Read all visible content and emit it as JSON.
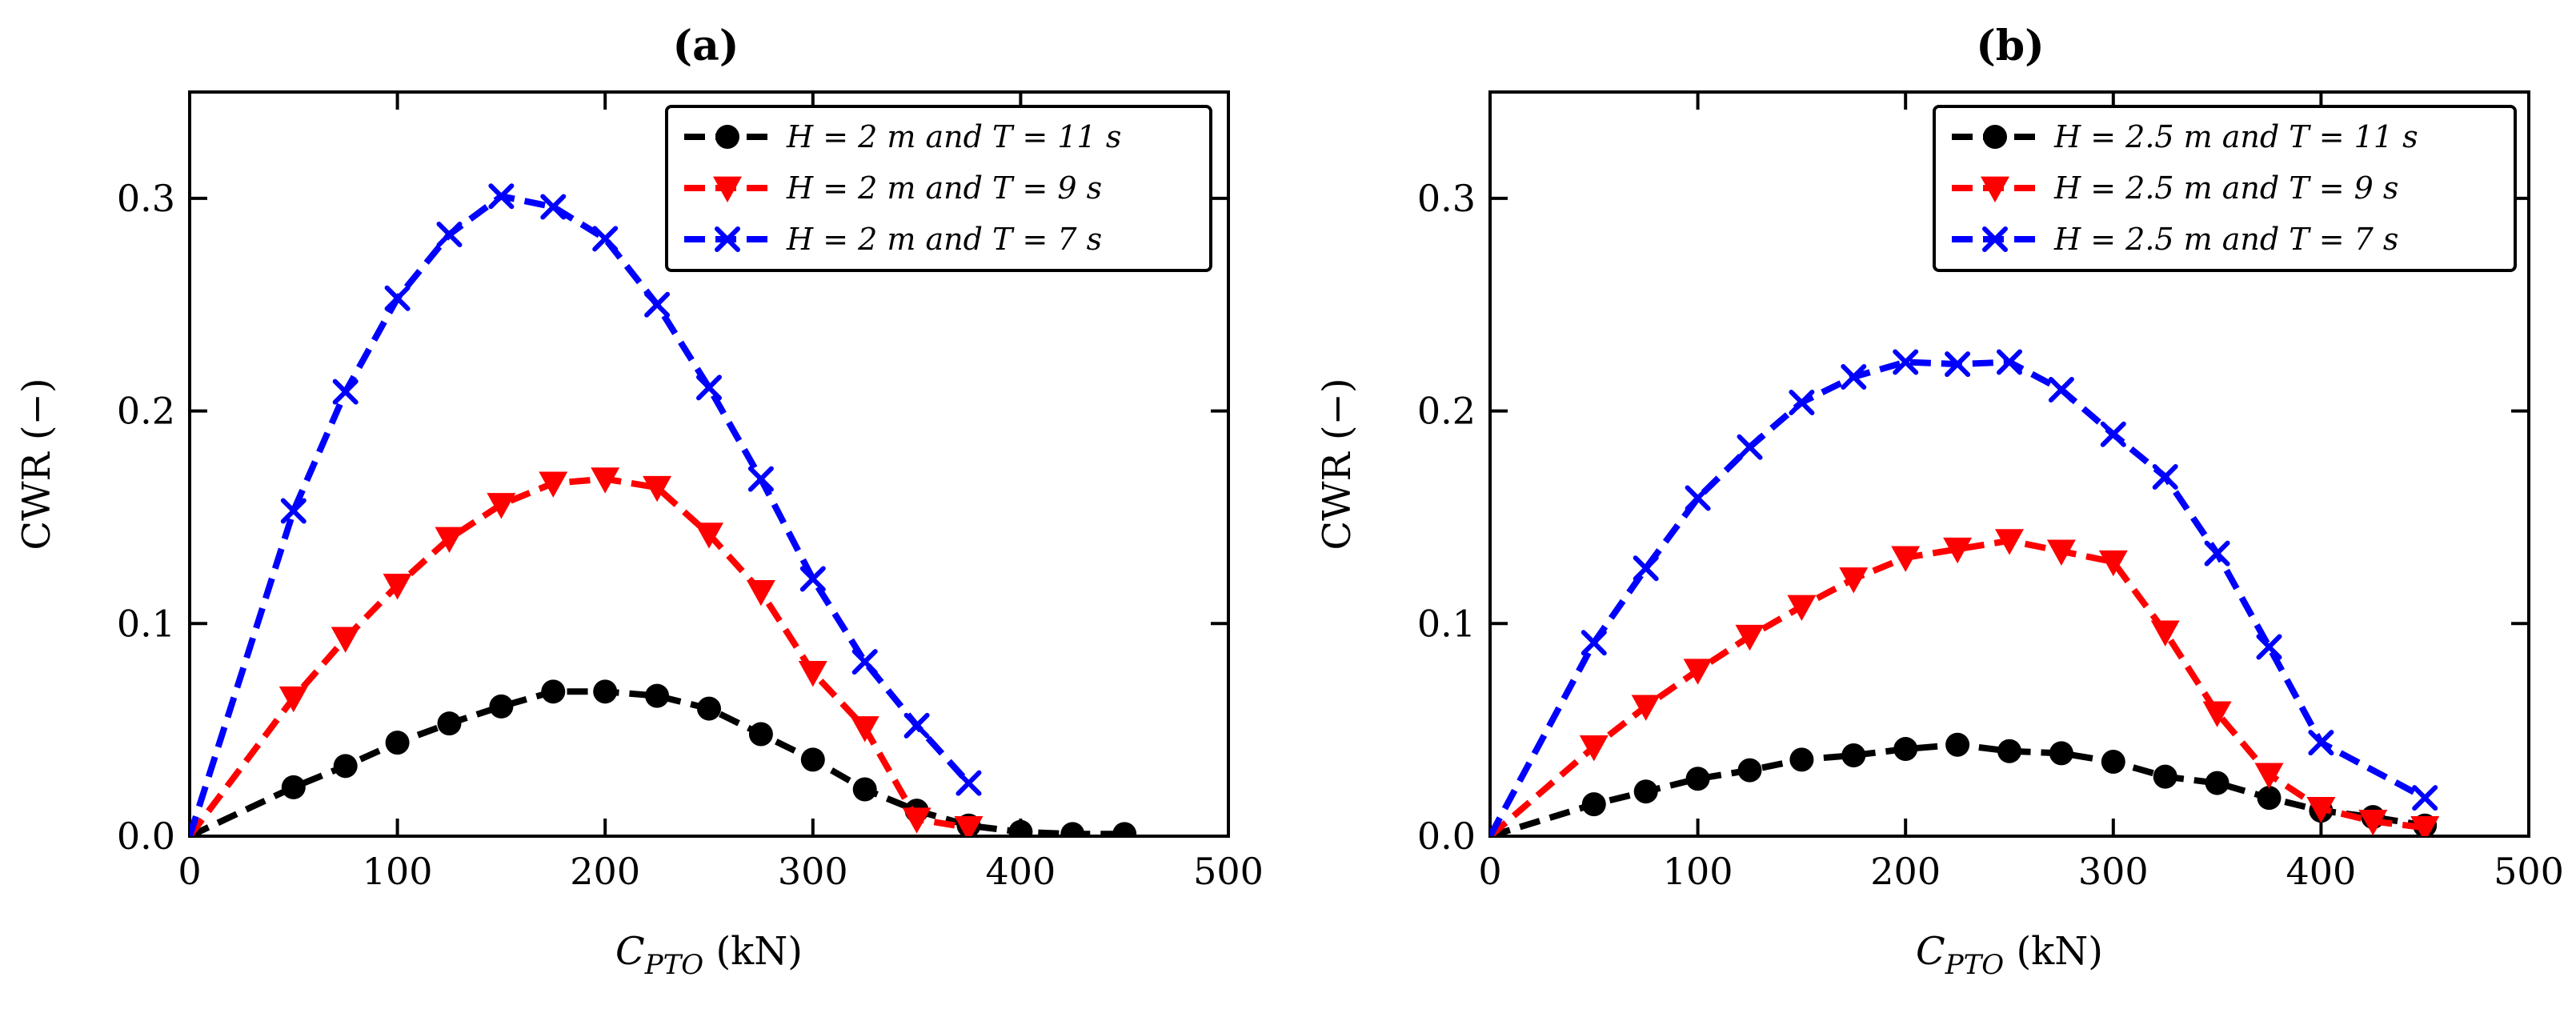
{
  "chart_data": [
    {
      "type": "line",
      "title": "(a)",
      "xlabel": "C_PTO (kN)",
      "xlabel_main": "C",
      "xlabel_sub": "PTO",
      "xlabel_unit": " (kN)",
      "ylabel": "CWR (−)",
      "xlim": [
        0,
        500
      ],
      "ylim": [
        0,
        0.35
      ],
      "xticks": [
        0,
        100,
        200,
        300,
        400,
        500
      ],
      "xtick_labels": [
        "0",
        "100",
        "200",
        "300",
        "400",
        "500"
      ],
      "yticks": [
        0,
        0.1,
        0.2,
        0.3
      ],
      "ytick_labels": [
        "0.0",
        "0.1",
        "0.2",
        "0.3"
      ],
      "grid": false,
      "legend_position": "top-right",
      "series": [
        {
          "name": "H = 2 m and T = 11 s",
          "color": "#000000",
          "marker": "circle",
          "x": [
            0,
            50,
            75,
            100,
            125,
            150,
            175,
            200,
            225,
            250,
            275,
            300,
            325,
            350,
            375,
            400,
            425,
            450
          ],
          "y": [
            0,
            0.023,
            0.033,
            0.044,
            0.053,
            0.061,
            0.068,
            0.068,
            0.066,
            0.06,
            0.048,
            0.036,
            0.022,
            0.012,
            0.005,
            0.002,
            0.001,
            0.001
          ]
        },
        {
          "name": "H = 2 m and T = 9 s",
          "color": "#ff0000",
          "marker": "triangle-down",
          "x": [
            0,
            50,
            75,
            100,
            125,
            150,
            175,
            200,
            225,
            250,
            275,
            300,
            325,
            350,
            375
          ],
          "y": [
            0,
            0.065,
            0.093,
            0.118,
            0.14,
            0.156,
            0.166,
            0.168,
            0.164,
            0.142,
            0.115,
            0.077,
            0.051,
            0.008,
            0.004
          ]
        },
        {
          "name": "H = 2 m and T = 7 s",
          "color": "#0000ff",
          "marker": "x",
          "x": [
            0,
            50,
            75,
            100,
            125,
            150,
            175,
            200,
            225,
            250,
            275,
            300,
            325,
            350,
            375
          ],
          "y": [
            0,
            0.153,
            0.209,
            0.253,
            0.283,
            0.301,
            0.296,
            0.281,
            0.25,
            0.211,
            0.168,
            0.121,
            0.082,
            0.052,
            0.025
          ]
        }
      ]
    },
    {
      "type": "line",
      "title": "(b)",
      "xlabel": "C_PTO (kN)",
      "xlabel_main": "C",
      "xlabel_sub": "PTO",
      "xlabel_unit": " (kN)",
      "ylabel": "CWR (−)",
      "xlim": [
        0,
        500
      ],
      "ylim": [
        0,
        0.35
      ],
      "xticks": [
        0,
        100,
        200,
        300,
        400,
        500
      ],
      "xtick_labels": [
        "0",
        "100",
        "200",
        "300",
        "400",
        "500"
      ],
      "yticks": [
        0,
        0.1,
        0.2,
        0.3
      ],
      "ytick_labels": [
        "0.0",
        "0.1",
        "0.2",
        "0.3"
      ],
      "grid": false,
      "legend_position": "top-right",
      "series": [
        {
          "name": "H = 2.5 m and T = 11 s",
          "color": "#000000",
          "marker": "circle",
          "x": [
            0,
            50,
            75,
            100,
            125,
            150,
            175,
            200,
            225,
            250,
            275,
            300,
            325,
            350,
            375,
            400,
            425,
            450
          ],
          "y": [
            0,
            0.015,
            0.021,
            0.027,
            0.031,
            0.036,
            0.038,
            0.041,
            0.043,
            0.04,
            0.039,
            0.035,
            0.028,
            0.025,
            0.018,
            0.012,
            0.009,
            0.005
          ]
        },
        {
          "name": "H = 2.5 m and T = 9 s",
          "color": "#ff0000",
          "marker": "triangle-down",
          "x": [
            0,
            50,
            75,
            100,
            125,
            150,
            175,
            200,
            225,
            250,
            275,
            300,
            325,
            350,
            375,
            400,
            425,
            450
          ],
          "y": [
            0,
            0.042,
            0.061,
            0.078,
            0.094,
            0.108,
            0.121,
            0.131,
            0.135,
            0.139,
            0.134,
            0.129,
            0.096,
            0.058,
            0.029,
            0.013,
            0.007,
            0.004
          ]
        },
        {
          "name": "H = 2.5 m and T = 7 s",
          "color": "#0000ff",
          "marker": "x",
          "x": [
            0,
            50,
            75,
            100,
            125,
            150,
            175,
            200,
            225,
            250,
            275,
            300,
            325,
            350,
            375,
            400,
            450
          ],
          "y": [
            0,
            0.091,
            0.126,
            0.159,
            0.183,
            0.204,
            0.216,
            0.223,
            0.222,
            0.223,
            0.21,
            0.189,
            0.169,
            0.133,
            0.089,
            0.044,
            0.018
          ]
        }
      ]
    }
  ]
}
